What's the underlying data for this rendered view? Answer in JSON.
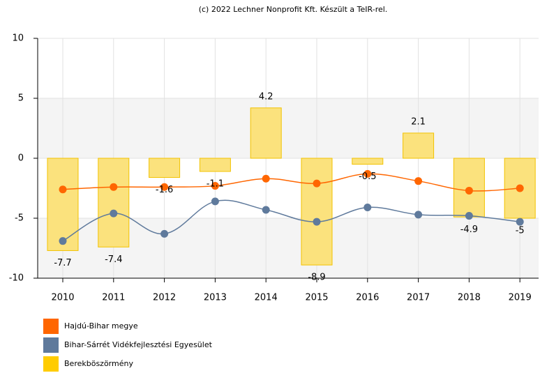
{
  "chart_data": {
    "type": "bar_line",
    "title": "(c) 2022 Lechner Nonprofit Kft. Készült a TeIR-rel.",
    "categories": [
      "2010",
      "2011",
      "2012",
      "2013",
      "2014",
      "2015",
      "2016",
      "2017",
      "2018",
      "2019"
    ],
    "ylim": [
      -10,
      10
    ],
    "yticks": [
      -10,
      -5,
      0,
      5,
      10
    ],
    "grid": true,
    "legend": "bottom-left",
    "series": [
      {
        "name": "Hajdú-Bihar megye",
        "type": "line",
        "color": "#ff6600",
        "values": [
          -2.6,
          -2.4,
          -2.4,
          -2.3,
          -1.7,
          -2.1,
          -1.3,
          -1.9,
          -2.7,
          -2.5
        ]
      },
      {
        "name": "Bihar-Sárrét Vidékfejlesztési Egyesület",
        "type": "line",
        "color": "#5f7a9c",
        "values": [
          -6.9,
          -4.6,
          -6.3,
          -3.6,
          -4.3,
          -5.3,
          -4.1,
          -4.7,
          -4.8,
          -5.3
        ]
      },
      {
        "name": "Berekböszörmény",
        "type": "bar",
        "color": "#ffcc00",
        "values": [
          -7.7,
          -7.4,
          -1.6,
          -1.1,
          4.2,
          -8.9,
          -0.5,
          2.1,
          -4.9,
          -5
        ]
      }
    ]
  }
}
